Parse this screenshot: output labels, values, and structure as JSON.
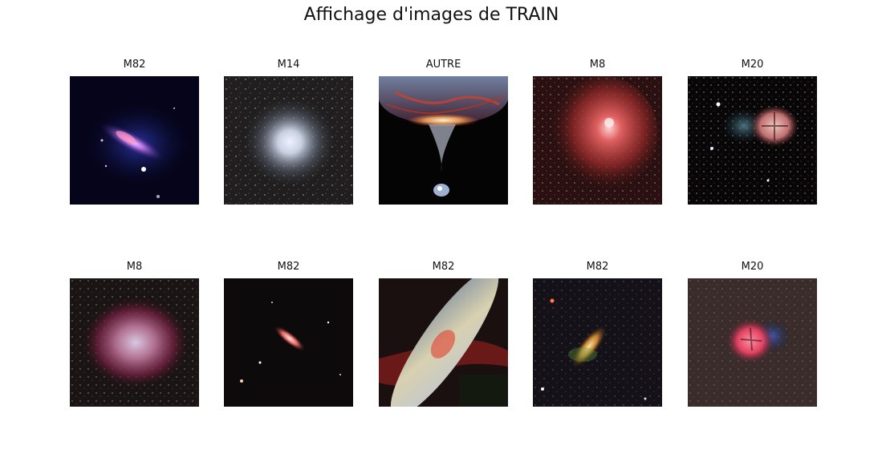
{
  "figure": {
    "title": "Affichage d'images de TRAIN"
  },
  "images": [
    {
      "label": "M82",
      "kind": "galaxy-blue"
    },
    {
      "label": "M14",
      "kind": "globular"
    },
    {
      "label": "AUTRE",
      "kind": "funnel"
    },
    {
      "label": "M8",
      "kind": "nebula-red"
    },
    {
      "label": "M20",
      "kind": "trifid-small"
    },
    {
      "label": "M8",
      "kind": "nebula-pink"
    },
    {
      "label": "M82",
      "kind": "galaxy-small"
    },
    {
      "label": "M82",
      "kind": "galaxy-large"
    },
    {
      "label": "M82",
      "kind": "galaxy-orange"
    },
    {
      "label": "M20",
      "kind": "trifid-pink"
    }
  ]
}
